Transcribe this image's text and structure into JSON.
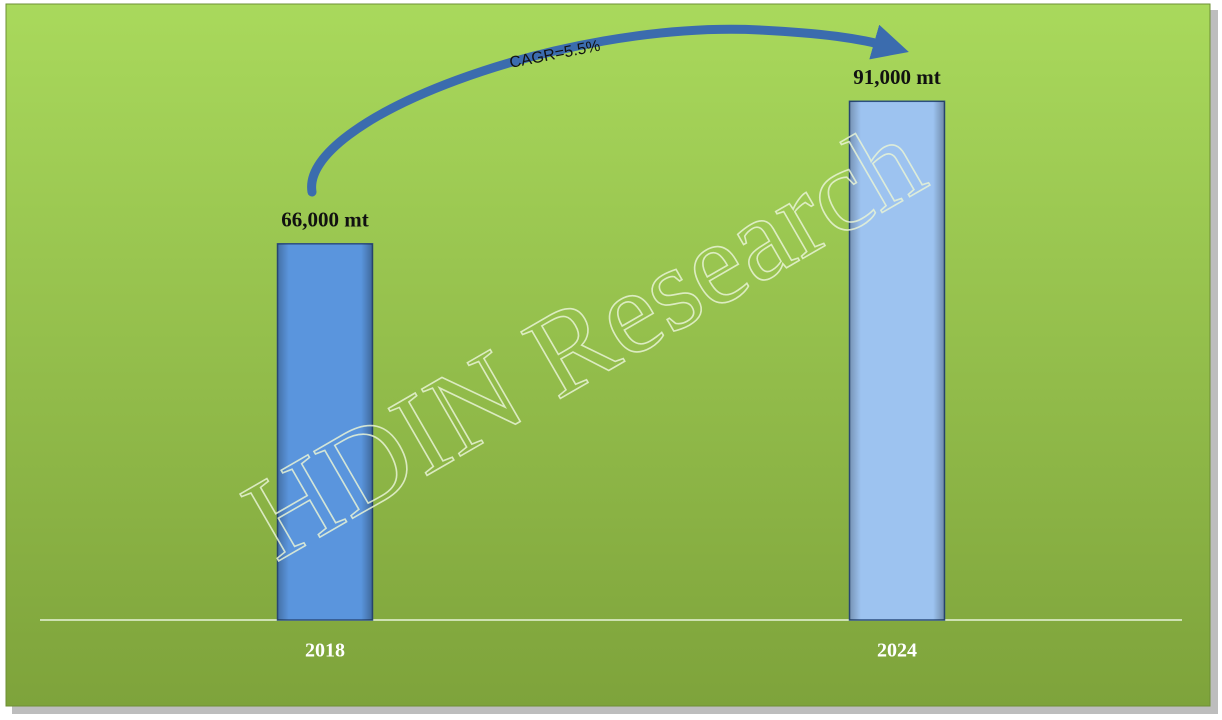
{
  "chart_data": {
    "type": "bar",
    "categories": [
      "2018",
      "2024"
    ],
    "values": [
      66000,
      91000
    ],
    "value_labels": [
      "66,000 mt",
      "91,000 mt"
    ],
    "colors": [
      "#5a95dd",
      "#9dc3f0"
    ],
    "ylim": [
      0,
      100000
    ],
    "annotation": "CAGR=5.5%",
    "watermark": "HDIN Research"
  }
}
